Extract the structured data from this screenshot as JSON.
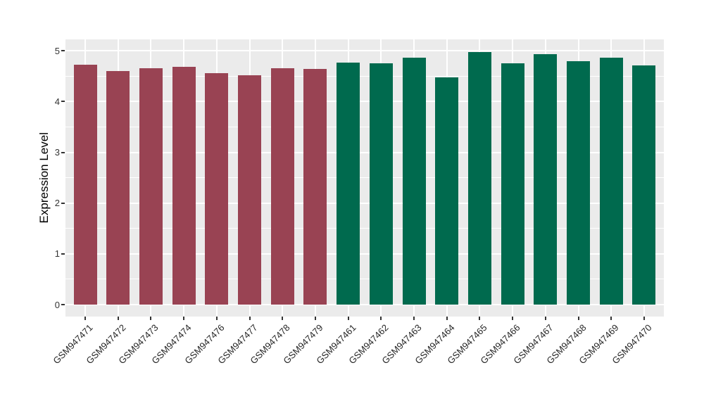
{
  "chart_data": {
    "type": "bar",
    "title": "",
    "xlabel": "",
    "ylabel": "Expression Level",
    "ylim": [
      0,
      5
    ],
    "yticks": [
      0,
      1,
      2,
      3,
      4,
      5
    ],
    "y_minor_ticks": [
      0.5,
      1.5,
      2.5,
      3.5,
      4.5
    ],
    "grid": true,
    "legend_position": "none",
    "categories": [
      "GSM947471",
      "GSM947472",
      "GSM947473",
      "GSM947474",
      "GSM947476",
      "GSM947477",
      "GSM947478",
      "GSM947479",
      "GSM947461",
      "GSM947462",
      "GSM947463",
      "GSM947464",
      "GSM947465",
      "GSM947466",
      "GSM947467",
      "GSM947468",
      "GSM947469",
      "GSM947470"
    ],
    "values": [
      4.73,
      4.6,
      4.66,
      4.68,
      4.56,
      4.52,
      4.66,
      4.64,
      4.77,
      4.75,
      4.86,
      4.48,
      4.97,
      4.76,
      4.94,
      4.8,
      4.87,
      4.71
    ],
    "groups": [
      "maroon",
      "maroon",
      "maroon",
      "maroon",
      "maroon",
      "maroon",
      "maroon",
      "maroon",
      "green",
      "green",
      "green",
      "green",
      "green",
      "green",
      "green",
      "green",
      "green",
      "green"
    ],
    "group_colors": {
      "maroon": "#994353",
      "green": "#006A4E"
    }
  },
  "style": {
    "page_bg": "#FFFFFF",
    "panel_bg": "#EBEBEB",
    "grid_color": "#FFFFFF",
    "tick_color": "#333333",
    "axis_text_color": "#333333",
    "x_label_color": "#262626",
    "axis_title_color": "#000000"
  }
}
